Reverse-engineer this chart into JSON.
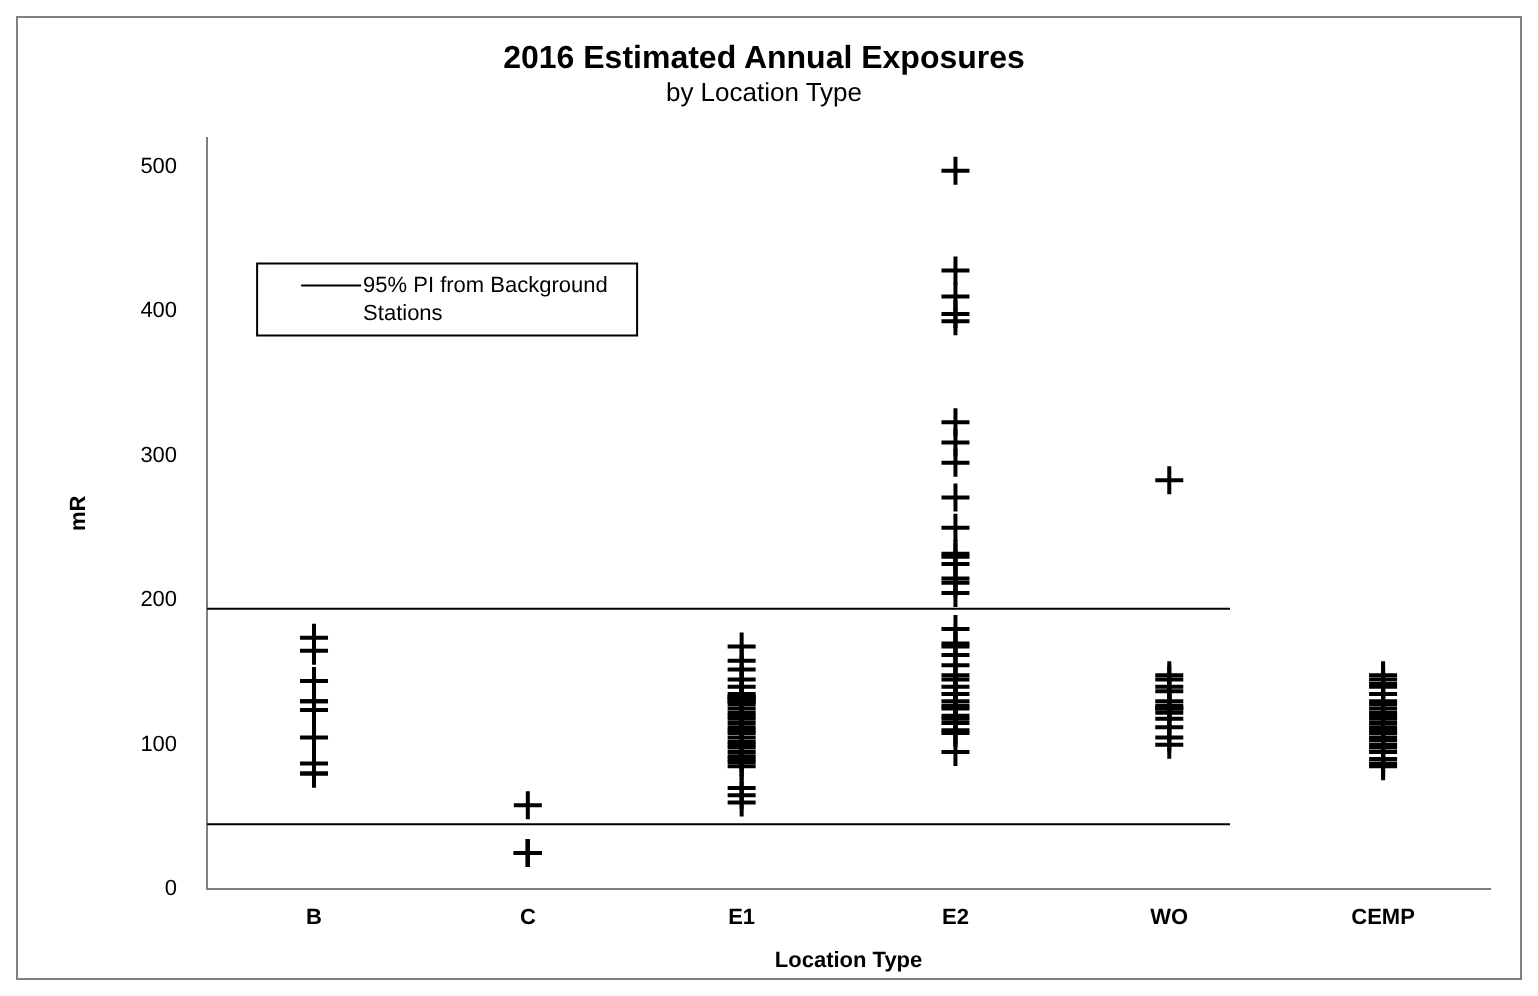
{
  "chart_data": {
    "type": "scatter",
    "title": "2016 Estimated Annual Exposures",
    "subtitle": "by Location Type",
    "xlabel": "Location Type",
    "ylabel": "mR",
    "categories": [
      "B",
      "C",
      "E1",
      "E2",
      "WO",
      "CEMP"
    ],
    "series": [
      {
        "color": "#000000",
        "marker": "cross",
        "x": [
          "B",
          "B",
          "B",
          "B",
          "B",
          "B",
          "B",
          "B",
          "B",
          "B",
          "C",
          "C",
          "C",
          "C",
          "C",
          "C",
          "E1",
          "E1",
          "E1",
          "E1",
          "E1",
          "E1",
          "E1",
          "E1",
          "E1",
          "E1",
          "E1",
          "E1",
          "E1",
          "E1",
          "E1",
          "E1",
          "E1",
          "E1",
          "E1",
          "E1",
          "E1",
          "E1",
          "E1",
          "E1",
          "E1",
          "E1",
          "E1",
          "E1",
          "E1",
          "E1",
          "E1",
          "E1",
          "E2",
          "E2",
          "E2",
          "E2",
          "E2",
          "E2",
          "E2",
          "E2",
          "E2",
          "E2",
          "E2",
          "E2",
          "E2",
          "E2",
          "E2",
          "E2",
          "E2",
          "E2",
          "E2",
          "E2",
          "E2",
          "E2",
          "E2",
          "E2",
          "E2",
          "E2",
          "E2",
          "E2",
          "E2",
          "E2",
          "E2",
          "E2",
          "E2",
          "E2",
          "WO",
          "WO",
          "WO",
          "WO",
          "WO",
          "WO",
          "WO",
          "WO",
          "WO",
          "WO",
          "WO",
          "WO",
          "WO",
          "WO",
          "CEMP",
          "CEMP",
          "CEMP",
          "CEMP",
          "CEMP",
          "CEMP",
          "CEMP",
          "CEMP",
          "CEMP",
          "CEMP",
          "CEMP",
          "CEMP",
          "CEMP",
          "CEMP",
          "CEMP",
          "CEMP",
          "CEMP",
          "CEMP",
          "CEMP",
          "CEMP",
          "CEMP",
          "CEMP",
          "CEMP"
        ],
        "values": [
          174,
          165,
          144,
          130,
          130,
          124,
          105,
          87,
          80,
          80,
          58,
          25,
          25,
          25,
          25,
          25,
          168,
          158,
          152,
          145,
          140,
          135,
          133,
          133,
          132,
          130,
          130,
          128,
          125,
          122,
          120,
          118,
          115,
          112,
          110,
          108,
          105,
          102,
          100,
          98,
          95,
          92,
          90,
          88,
          85,
          70,
          65,
          60,
          497,
          428,
          410,
          398,
          393,
          323,
          309,
          295,
          271,
          250,
          232,
          230,
          225,
          215,
          212,
          205,
          180,
          170,
          168,
          162,
          155,
          148,
          145,
          140,
          135,
          130,
          127,
          125,
          120,
          118,
          115,
          110,
          108,
          95,
          283,
          148,
          145,
          140,
          137,
          130,
          127,
          125,
          125,
          122,
          118,
          112,
          105,
          100,
          148,
          145,
          142,
          140,
          135,
          130,
          128,
          125,
          122,
          120,
          118,
          115,
          112,
          110,
          108,
          105,
          103,
          100,
          98,
          95,
          90,
          87,
          85
        ]
      }
    ],
    "ylim": [
      0,
      520
    ],
    "yticks": [
      0,
      100,
      200,
      300,
      400,
      500
    ],
    "grid": false,
    "legend": "top left",
    "ref_lines": [
      {
        "axis": "y",
        "value": 194,
        "label": "95% PI from Background Stations",
        "color": "#000000"
      },
      {
        "axis": "y",
        "value": 45,
        "color": "#000000"
      }
    ]
  }
}
